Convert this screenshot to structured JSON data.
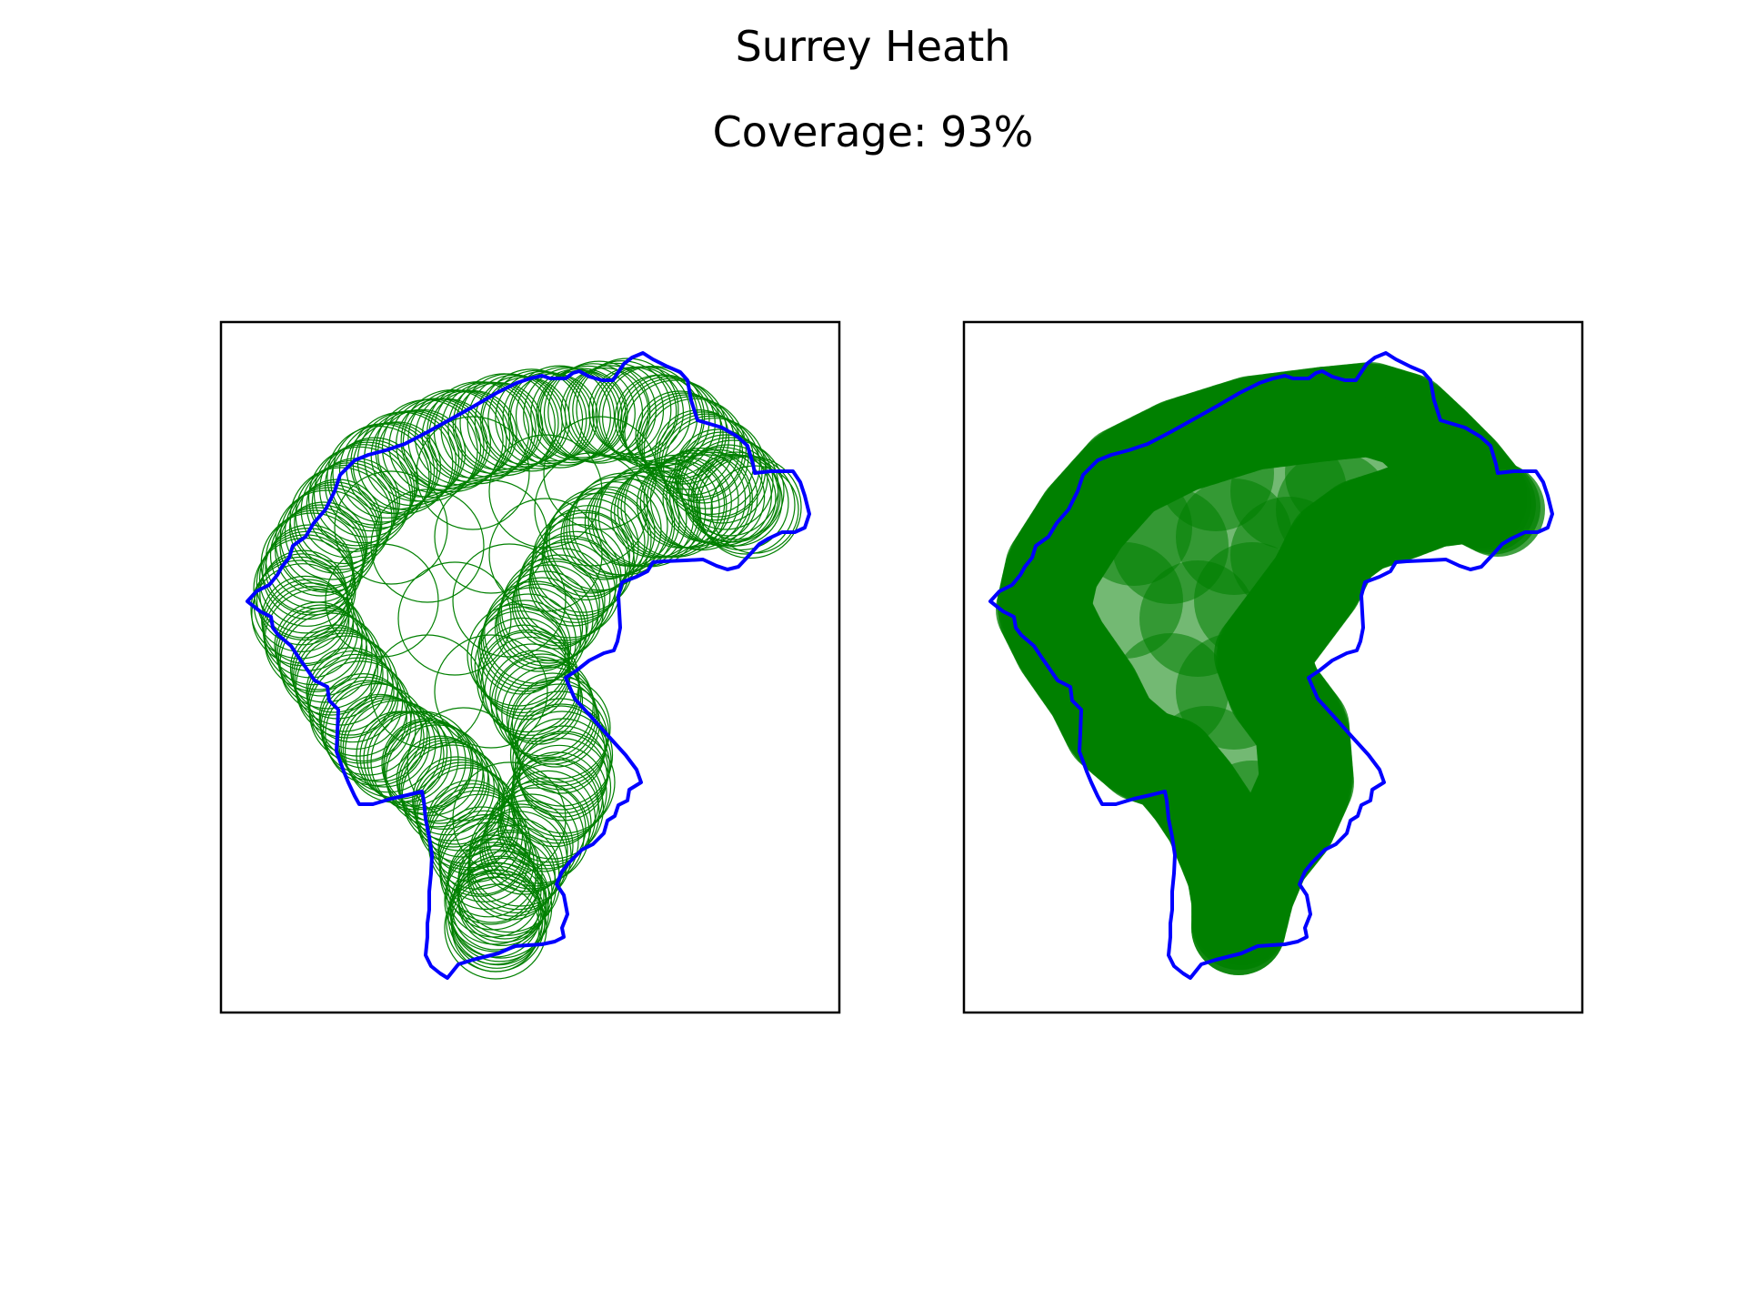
{
  "figure": {
    "title": "Surrey Heath",
    "subtitle": "Coverage: 93%"
  },
  "colors": {
    "boundary": "#0000ff",
    "coverage": "#008000",
    "frame": "#000000",
    "background": "#ffffff"
  },
  "chart_data": {
    "type": "map",
    "region": "Surrey Heath",
    "coverage_percent": 93,
    "panels": [
      {
        "name": "coverage-outline-panel",
        "style": "outline"
      },
      {
        "name": "coverage-filled-panel",
        "style": "filled"
      }
    ]
  }
}
